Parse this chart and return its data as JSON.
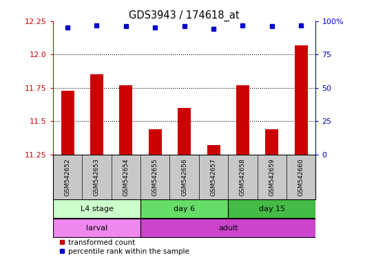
{
  "title": "GDS3943 / 174618_at",
  "samples": [
    "GSM542652",
    "GSM542653",
    "GSM542654",
    "GSM542655",
    "GSM542656",
    "GSM542657",
    "GSM542658",
    "GSM542659",
    "GSM542660"
  ],
  "transformed_counts": [
    11.73,
    11.85,
    11.77,
    11.44,
    11.6,
    11.32,
    11.77,
    11.44,
    12.07
  ],
  "percentile_ranks": [
    95,
    97,
    96,
    95,
    96,
    94,
    97,
    96,
    97
  ],
  "ylim_left": [
    11.25,
    12.25
  ],
  "ylim_right": [
    0,
    100
  ],
  "yticks_left": [
    11.25,
    11.5,
    11.75,
    12.0,
    12.25
  ],
  "yticks_right": [
    0,
    25,
    50,
    75,
    100
  ],
  "age_groups": [
    {
      "label": "L4 stage",
      "start": 0,
      "end": 3,
      "color": "#ccffcc"
    },
    {
      "label": "day 6",
      "start": 3,
      "end": 6,
      "color": "#66dd66"
    },
    {
      "label": "day 15",
      "start": 6,
      "end": 9,
      "color": "#44bb44"
    }
  ],
  "dev_groups": [
    {
      "label": "larval",
      "start": 0,
      "end": 3,
      "color": "#ee88ee"
    },
    {
      "label": "adult",
      "start": 3,
      "end": 9,
      "color": "#cc44cc"
    }
  ],
  "bar_color": "#cc0000",
  "dot_color": "#0000cc",
  "grid_color": "#000000",
  "background_color": "#ffffff",
  "sample_bg_color": "#c8c8c8",
  "ylabel_left_color": "#cc0000",
  "ylabel_right_color": "#0000cc",
  "label_color": "#888888"
}
